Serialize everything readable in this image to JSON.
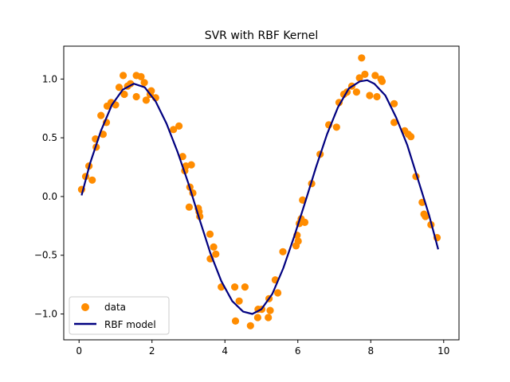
{
  "chart_data": {
    "type": "scatter",
    "title": "SVR with RBF Kernel",
    "xlabel": "",
    "ylabel": "",
    "xlim": [
      -0.42,
      10.42
    ],
    "ylim": [
      -1.22,
      1.28
    ],
    "x_ticks": [
      0,
      2,
      4,
      6,
      8,
      10
    ],
    "x_tick_labels": [
      "0",
      "2",
      "4",
      "6",
      "8",
      "10"
    ],
    "y_ticks": [
      -1.0,
      -0.5,
      0.0,
      0.5,
      1.0
    ],
    "y_tick_labels": [
      "−1.0",
      "−0.5",
      "0.0",
      "0.5",
      "1.0"
    ],
    "grid": false,
    "legend_position": "lower-left",
    "colors": {
      "data": "#ff8c00",
      "model": "#000080"
    },
    "series": [
      {
        "name": "data",
        "kind": "scatter",
        "points": [
          [
            0.07,
            0.06
          ],
          [
            0.18,
            0.17
          ],
          [
            0.27,
            0.26
          ],
          [
            0.36,
            0.14
          ],
          [
            0.45,
            0.49
          ],
          [
            0.47,
            0.42
          ],
          [
            0.6,
            0.69
          ],
          [
            0.66,
            0.53
          ],
          [
            0.75,
            0.63
          ],
          [
            0.77,
            0.77
          ],
          [
            0.88,
            0.8
          ],
          [
            1.0,
            0.78
          ],
          [
            1.1,
            0.93
          ],
          [
            1.21,
            1.03
          ],
          [
            1.24,
            0.87
          ],
          [
            1.33,
            0.94
          ],
          [
            1.41,
            0.96
          ],
          [
            1.57,
            0.85
          ],
          [
            1.57,
            1.03
          ],
          [
            1.7,
            1.02
          ],
          [
            1.79,
            0.97
          ],
          [
            1.84,
            0.82
          ],
          [
            1.95,
            0.87
          ],
          [
            1.98,
            0.9
          ],
          [
            2.1,
            0.84
          ],
          [
            2.59,
            0.57
          ],
          [
            2.74,
            0.6
          ],
          [
            2.84,
            0.34
          ],
          [
            2.9,
            0.22
          ],
          [
            2.93,
            0.26
          ],
          [
            3.02,
            -0.09
          ],
          [
            3.04,
            0.08
          ],
          [
            3.08,
            0.27
          ],
          [
            3.12,
            0.03
          ],
          [
            3.27,
            -0.1
          ],
          [
            3.29,
            -0.13
          ],
          [
            3.31,
            -0.17
          ],
          [
            3.59,
            -0.32
          ],
          [
            3.6,
            -0.53
          ],
          [
            3.69,
            -0.43
          ],
          [
            3.75,
            -0.49
          ],
          [
            3.9,
            -0.77
          ],
          [
            4.27,
            -0.77
          ],
          [
            4.29,
            -1.06
          ],
          [
            4.39,
            -0.89
          ],
          [
            4.55,
            -0.77
          ],
          [
            4.7,
            -1.1
          ],
          [
            4.9,
            -1.03
          ],
          [
            4.91,
            -0.96
          ],
          [
            5.01,
            -0.96
          ],
          [
            5.19,
            -1.03
          ],
          [
            5.21,
            -0.87
          ],
          [
            5.24,
            -0.97
          ],
          [
            5.38,
            -0.71
          ],
          [
            5.45,
            -0.82
          ],
          [
            5.59,
            -0.47
          ],
          [
            5.95,
            -0.42
          ],
          [
            5.98,
            -0.33
          ],
          [
            6.01,
            -0.38
          ],
          [
            6.04,
            -0.23
          ],
          [
            6.09,
            -0.19
          ],
          [
            6.13,
            -0.03
          ],
          [
            6.19,
            -0.22
          ],
          [
            6.38,
            0.11
          ],
          [
            6.61,
            0.36
          ],
          [
            6.85,
            0.61
          ],
          [
            7.06,
            0.59
          ],
          [
            7.13,
            0.8
          ],
          [
            7.26,
            0.87
          ],
          [
            7.35,
            0.89
          ],
          [
            7.48,
            0.94
          ],
          [
            7.61,
            0.89
          ],
          [
            7.69,
            1.01
          ],
          [
            7.75,
            1.18
          ],
          [
            7.84,
            1.04
          ],
          [
            7.97,
            0.86
          ],
          [
            8.12,
            1.03
          ],
          [
            8.17,
            0.85
          ],
          [
            8.28,
            1.0
          ],
          [
            8.31,
            0.98
          ],
          [
            8.64,
            0.79
          ],
          [
            8.64,
            0.63
          ],
          [
            8.93,
            0.56
          ],
          [
            9.03,
            0.53
          ],
          [
            9.1,
            0.51
          ],
          [
            9.24,
            0.17
          ],
          [
            9.41,
            -0.05
          ],
          [
            9.46,
            -0.15
          ],
          [
            9.5,
            -0.17
          ],
          [
            9.65,
            -0.24
          ],
          [
            9.82,
            -0.35
          ]
        ]
      },
      {
        "name": "RBF model",
        "kind": "line",
        "points": [
          [
            0.07,
            0.01
          ],
          [
            0.3,
            0.28
          ],
          [
            0.6,
            0.56
          ],
          [
            0.9,
            0.78
          ],
          [
            1.2,
            0.91
          ],
          [
            1.5,
            0.96
          ],
          [
            1.8,
            0.93
          ],
          [
            2.1,
            0.81
          ],
          [
            2.4,
            0.62
          ],
          [
            2.7,
            0.38
          ],
          [
            3.0,
            0.11
          ],
          [
            3.3,
            -0.19
          ],
          [
            3.6,
            -0.48
          ],
          [
            3.9,
            -0.72
          ],
          [
            4.2,
            -0.89
          ],
          [
            4.5,
            -0.98
          ],
          [
            4.75,
            -1.0
          ],
          [
            5.0,
            -0.96
          ],
          [
            5.3,
            -0.83
          ],
          [
            5.6,
            -0.61
          ],
          [
            5.9,
            -0.34
          ],
          [
            6.2,
            -0.05
          ],
          [
            6.5,
            0.25
          ],
          [
            6.8,
            0.53
          ],
          [
            7.1,
            0.76
          ],
          [
            7.4,
            0.92
          ],
          [
            7.7,
            0.98
          ],
          [
            7.9,
            0.99
          ],
          [
            8.1,
            0.96
          ],
          [
            8.4,
            0.86
          ],
          [
            8.7,
            0.67
          ],
          [
            9.0,
            0.44
          ],
          [
            9.3,
            0.14
          ],
          [
            9.6,
            -0.16
          ],
          [
            9.85,
            -0.45
          ]
        ]
      }
    ],
    "legend": {
      "entries": [
        {
          "label": "data",
          "marker": "circle"
        },
        {
          "label": "RBF model",
          "marker": "line"
        }
      ]
    }
  }
}
